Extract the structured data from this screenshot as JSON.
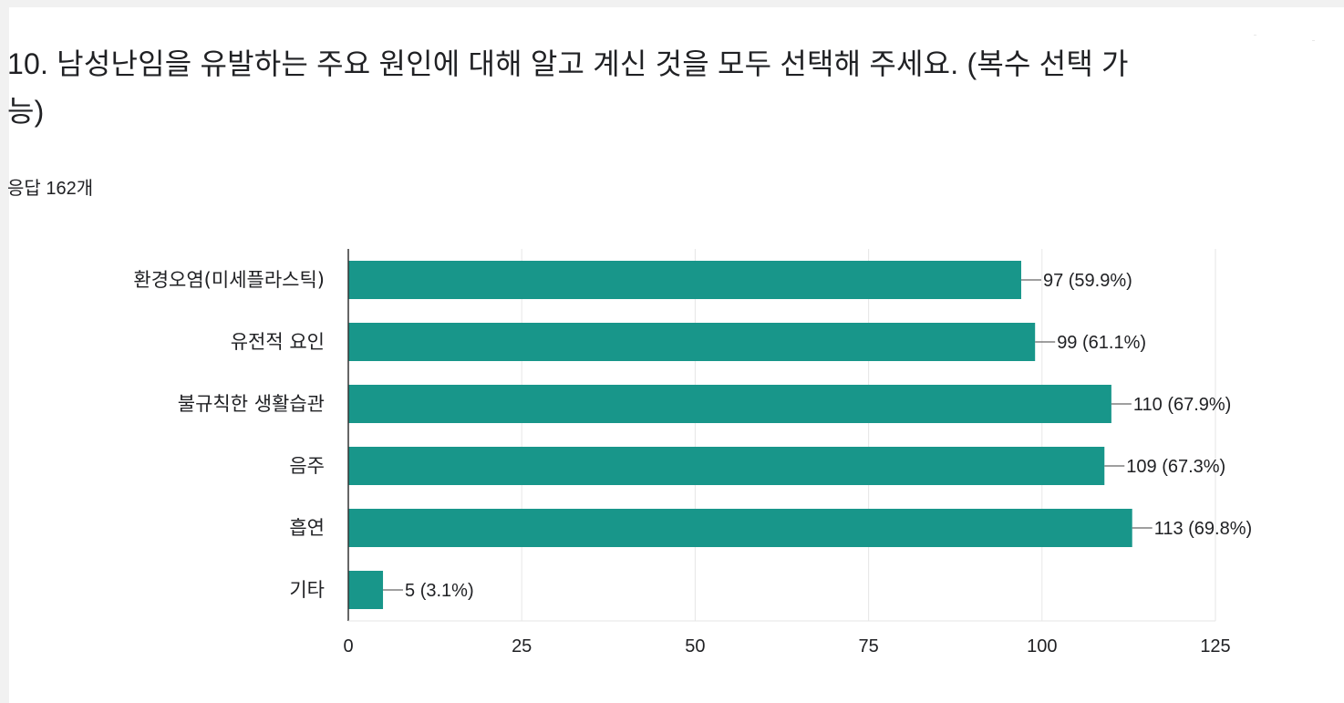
{
  "question": {
    "title": "10. 남성난임을 유발하는 주요 원인에 대해 알고 계신 것을 모두 선택해 주세요. (복수 선택 가능)",
    "response_count": "응답 162개"
  },
  "colors": {
    "bar": "#18968a",
    "axis": "#333333",
    "grid": "#e6e6e6",
    "text": "#202124",
    "leader": "#666666"
  },
  "chart_data": {
    "type": "bar",
    "orientation": "horizontal",
    "categories": [
      "환경오염(미세플라스틱)",
      "유전적 요인",
      "불규칙한 생활습관",
      "음주",
      "흡연",
      "기타"
    ],
    "values": [
      97,
      99,
      110,
      109,
      113,
      5
    ],
    "data_labels": [
      "97 (59.9%)",
      "99 (61.1%)",
      "110 (67.9%)",
      "109 (67.3%)",
      "113 (69.8%)",
      "5 (3.1%)"
    ],
    "xlim": [
      0,
      125
    ],
    "xticks": [
      0,
      25,
      50,
      75,
      100,
      125
    ],
    "xlabel": "",
    "ylabel": "",
    "grid": true
  }
}
